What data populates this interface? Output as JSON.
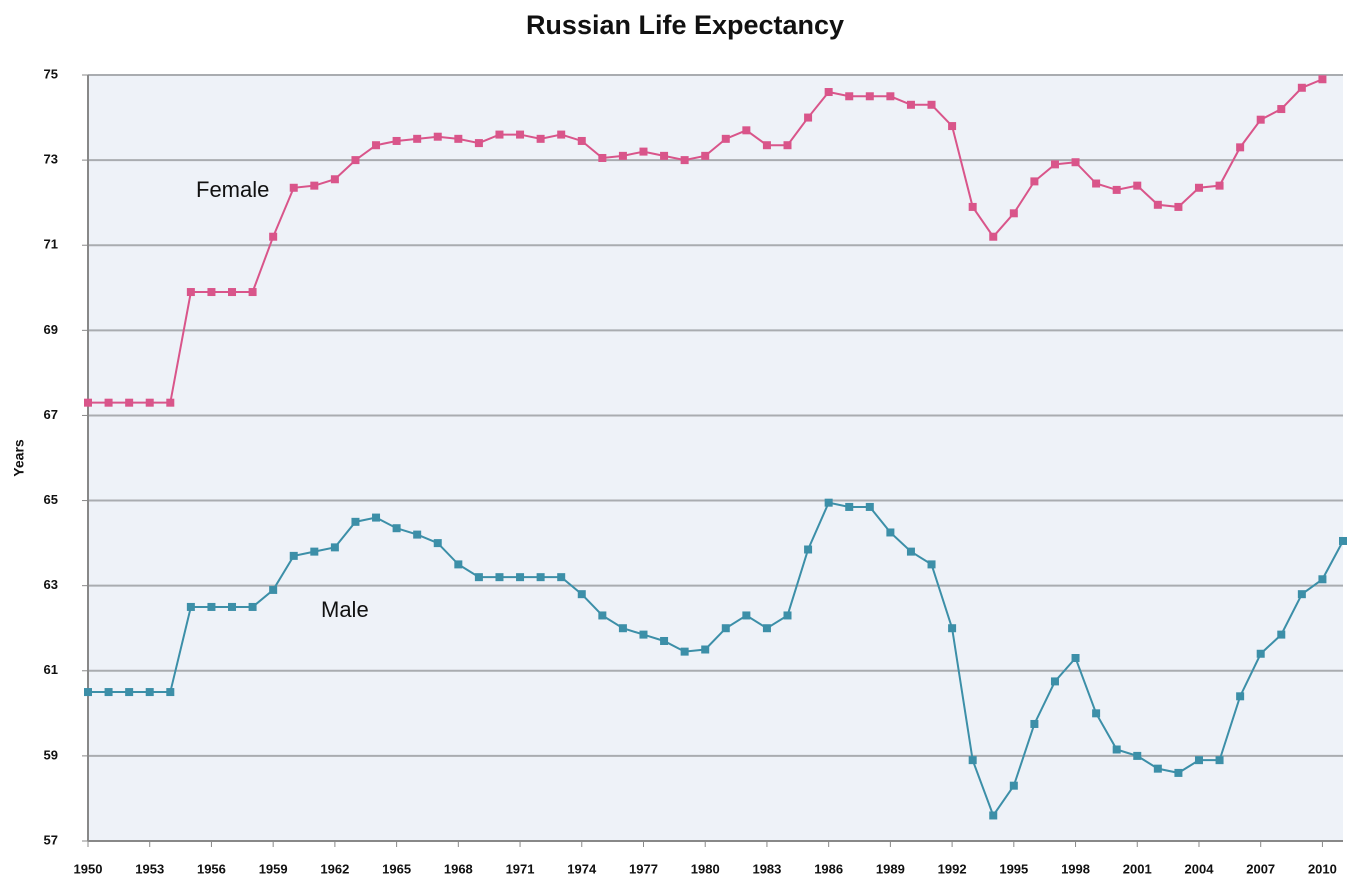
{
  "chart_data": {
    "type": "line",
    "title": "Russian Life Expectancy",
    "ylabel": "Years",
    "annotations": [
      "Female",
      "Male"
    ],
    "x": [
      1950,
      1951,
      1952,
      1953,
      1954,
      1955,
      1956,
      1957,
      1958,
      1959,
      1960,
      1961,
      1962,
      1963,
      1964,
      1965,
      1966,
      1967,
      1968,
      1969,
      1970,
      1971,
      1972,
      1973,
      1974,
      1975,
      1976,
      1977,
      1978,
      1979,
      1980,
      1981,
      1982,
      1983,
      1984,
      1985,
      1986,
      1987,
      1988,
      1989,
      1990,
      1991,
      1992,
      1993,
      1994,
      1995,
      1996,
      1997,
      1998,
      1999,
      2000,
      2001,
      2002,
      2003,
      2004,
      2005,
      2006,
      2007,
      2008,
      2009,
      2010,
      2011
    ],
    "series": [
      {
        "name": "Female",
        "color": "#d9558a",
        "values": [
          67.3,
          67.3,
          67.3,
          67.3,
          67.3,
          69.9,
          69.9,
          69.9,
          69.9,
          71.2,
          72.35,
          72.4,
          72.55,
          73.0,
          73.35,
          73.45,
          73.5,
          73.55,
          73.5,
          73.4,
          73.6,
          73.6,
          73.5,
          73.6,
          73.45,
          73.05,
          73.1,
          73.2,
          73.1,
          73.0,
          73.1,
          73.5,
          73.7,
          73.35,
          73.35,
          74.0,
          74.6,
          74.5,
          74.5,
          74.5,
          74.3,
          74.3,
          73.8,
          71.9,
          71.2,
          71.75,
          72.5,
          72.9,
          72.95,
          72.45,
          72.3,
          72.4,
          71.95,
          71.9,
          72.35,
          72.4,
          73.3,
          73.95,
          74.2,
          74.7,
          74.9,
          null
        ]
      },
      {
        "name": "Male",
        "color": "#3c8fa8",
        "values": [
          60.5,
          60.5,
          60.5,
          60.5,
          60.5,
          62.5,
          62.5,
          62.5,
          62.5,
          62.9,
          63.7,
          63.8,
          63.9,
          64.5,
          64.6,
          64.35,
          64.2,
          64.0,
          63.5,
          63.2,
          63.2,
          63.2,
          63.2,
          63.2,
          62.8,
          62.3,
          62.0,
          61.85,
          61.7,
          61.45,
          61.5,
          62.0,
          62.3,
          62.0,
          62.3,
          63.85,
          64.95,
          64.85,
          64.85,
          64.25,
          63.8,
          63.5,
          62.0,
          58.9,
          57.6,
          58.3,
          59.75,
          60.75,
          61.3,
          60.0,
          59.15,
          59.0,
          58.7,
          58.6,
          58.9,
          58.9,
          60.4,
          61.4,
          61.85,
          62.8,
          63.15,
          64.05
        ]
      }
    ],
    "xlim": [
      1950,
      2011
    ],
    "xticks": [
      1950,
      1953,
      1956,
      1959,
      1962,
      1965,
      1968,
      1971,
      1974,
      1977,
      1980,
      1983,
      1986,
      1989,
      1992,
      1995,
      1998,
      2001,
      2004,
      2007,
      2010
    ],
    "ylim": [
      57,
      75
    ],
    "yticks": [
      57,
      59,
      61,
      63,
      65,
      67,
      69,
      71,
      73,
      75
    ],
    "grid": true
  }
}
